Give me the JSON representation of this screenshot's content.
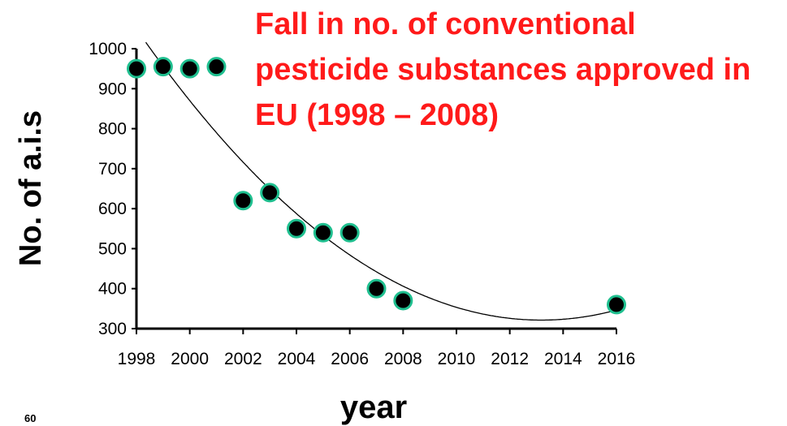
{
  "chart_data": {
    "type": "scatter",
    "title_lines": [
      "Fall in no. of conventional",
      "pesticide substances approved in",
      "EU (1998 – 2008)"
    ],
    "xlabel": "year",
    "ylabel": "No. of a.i.s",
    "xlim": [
      1998,
      2016
    ],
    "ylim": [
      300,
      1000
    ],
    "x_ticks": [
      1998,
      2000,
      2002,
      2004,
      2006,
      2008,
      2010,
      2012,
      2014,
      2016
    ],
    "y_ticks": [
      300,
      400,
      500,
      600,
      700,
      800,
      900,
      1000
    ],
    "points": [
      {
        "x": 1998,
        "y": 950
      },
      {
        "x": 1999,
        "y": 955
      },
      {
        "x": 2000,
        "y": 950
      },
      {
        "x": 2001,
        "y": 955
      },
      {
        "x": 2002,
        "y": 620
      },
      {
        "x": 2003,
        "y": 640
      },
      {
        "x": 2004,
        "y": 550
      },
      {
        "x": 2005,
        "y": 540
      },
      {
        "x": 2006,
        "y": 540
      },
      {
        "x": 2007,
        "y": 400
      },
      {
        "x": 2008,
        "y": 370
      },
      {
        "x": 2016,
        "y": 360
      }
    ],
    "trendline": {
      "type": "polynomial",
      "order": 2
    },
    "marker_fill": "#000000",
    "marker_edge": "#1fbf8f",
    "title_color": "#ff1a1a",
    "grid": false,
    "legend": "none"
  },
  "corner_note": "60"
}
